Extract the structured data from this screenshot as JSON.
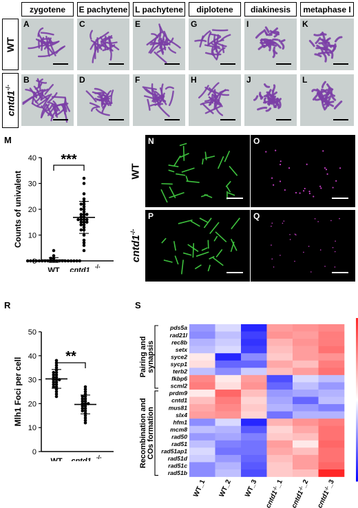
{
  "stages": [
    "zygotene",
    "E pachytene",
    "L pachytene",
    "diplotene",
    "diakinesis",
    "metaphase I"
  ],
  "row_labels": {
    "wt": "WT",
    "mut": "cntd1",
    "mut_sup": "-/-"
  },
  "panel_letters": {
    "top": [
      "A",
      "C",
      "E",
      "G",
      "I",
      "K"
    ],
    "bottom": [
      "B",
      "D",
      "F",
      "H",
      "J",
      "L"
    ]
  },
  "fluor_letters": [
    "N",
    "O",
    "P",
    "Q"
  ],
  "fluor_row_labels": {
    "wt": "WT",
    "mut": "cntd1",
    "mut_sup": "-/-"
  },
  "section_labels": {
    "M": "M",
    "R": "R",
    "S": "S"
  },
  "colors": {
    "chromatin": "#7b3fa6",
    "stage_bg": "#c9d0cf",
    "syn_green": "#3ec23e",
    "foci_magenta": "#c23ec2"
  },
  "chart_data": [
    {
      "type": "scatter",
      "panel": "M",
      "ylabel": "Counts of univalent",
      "ylim": [
        0,
        40
      ],
      "yticks": [
        0,
        10,
        20,
        30,
        40
      ],
      "categories": [
        "WT",
        "cntd1-/-"
      ],
      "significance": "***",
      "series": [
        {
          "values": [
            0,
            0,
            0,
            0,
            0,
            0,
            0,
            0,
            0,
            0,
            0,
            0,
            0,
            0,
            0,
            0,
            0,
            0,
            0,
            1,
            1,
            2,
            4
          ]
        },
        {
          "values": [
            4,
            6,
            7,
            8,
            10,
            12,
            12,
            13,
            14,
            14,
            15,
            15,
            15,
            16,
            16,
            16,
            16,
            17,
            17,
            18,
            18,
            18,
            19,
            20,
            20,
            21,
            22,
            22,
            23,
            24,
            26,
            30,
            32
          ]
        }
      ]
    },
    {
      "type": "scatter",
      "panel": "R",
      "ylabel": "Mlh1 Foci per cell",
      "ylim": [
        0,
        50
      ],
      "yticks": [
        0,
        10,
        20,
        30,
        40,
        50
      ],
      "categories": [
        "WT",
        "cntd1-/-"
      ],
      "significance": "**",
      "series": [
        {
          "values": [
            23,
            24,
            25,
            26,
            27,
            27,
            28,
            28,
            29,
            29,
            30,
            30,
            30,
            31,
            31,
            32,
            32,
            33,
            33,
            34,
            35,
            36,
            37,
            38
          ]
        },
        {
          "values": [
            12,
            13,
            14,
            15,
            16,
            17,
            17,
            18,
            18,
            19,
            19,
            20,
            20,
            20,
            21,
            21,
            22,
            22,
            23,
            23,
            24,
            25,
            26,
            27
          ]
        }
      ]
    },
    {
      "type": "heatmap",
      "panel": "S",
      "columns": [
        "WT_1",
        "WT_2",
        "WT_3",
        "cntd1-/-_1",
        "cntd1-/-_2",
        "cntd1-/-_3"
      ],
      "column_parts": [
        {
          "gene": "",
          "pre": "WT_1",
          "sup": "",
          "post": ""
        },
        {
          "gene": "",
          "pre": "WT_2",
          "sup": "",
          "post": ""
        },
        {
          "gene": "",
          "pre": "WT_3",
          "sup": "",
          "post": ""
        },
        {
          "gene": "cntd1",
          "pre": "",
          "sup": "-/-",
          "post": "_1"
        },
        {
          "gene": "cntd1",
          "pre": "",
          "sup": "-/-",
          "post": "_2"
        },
        {
          "gene": "cntd1",
          "pre": "",
          "sup": "-/-",
          "post": "_3"
        }
      ],
      "groups": [
        {
          "label": "Pairing and synapsis",
          "rows": [
            "pds5a",
            "rad21l",
            "rec8b",
            "setx",
            "syce2",
            "sycp1",
            "terb2",
            "fkbp6",
            "scml2"
          ]
        },
        {
          "label": "Recombination and COs formation",
          "rows": [
            "prdm9",
            "cntd1",
            "mus81",
            "slx4",
            "hfm1",
            "mcm8",
            "rad50",
            "rad51",
            "rad51ap1",
            "rad51d",
            "rad51c",
            "rad51b"
          ]
        }
      ],
      "rows": [
        "pds5a",
        "rad21l",
        "rec8b",
        "setx",
        "syce2",
        "sycp1",
        "terb2",
        "fkbp6",
        "scml2",
        "prdm9",
        "cntd1",
        "mus81",
        "slx4",
        "hfm1",
        "mcm8",
        "rad50",
        "rad51",
        "rad51ap1",
        "rad51d",
        "rad51c",
        "rad51b"
      ],
      "values": [
        [
          -0.8,
          -0.3,
          -1.7,
          0.9,
          1.0,
          1.1
        ],
        [
          -0.9,
          -0.5,
          -1.5,
          1.0,
          0.9,
          1.2
        ],
        [
          -0.6,
          -0.4,
          -1.6,
          0.7,
          1.0,
          1.2
        ],
        [
          -0.5,
          -0.3,
          -1.5,
          0.6,
          0.9,
          1.3
        ],
        [
          0.2,
          -1.7,
          -0.9,
          0.5,
          0.9,
          1.0
        ],
        [
          0.3,
          -1.2,
          -1.2,
          0.8,
          0.6,
          1.2
        ],
        [
          -0.5,
          -0.9,
          -0.4,
          0.6,
          0.9,
          1.3
        ],
        [
          1.1,
          0.2,
          0.9,
          -1.4,
          -0.3,
          -0.5
        ],
        [
          1.2,
          0.3,
          1.0,
          -1.2,
          -0.5,
          -0.8
        ],
        [
          0.2,
          1.4,
          0.6,
          -0.8,
          -0.7,
          -0.6
        ],
        [
          0.6,
          1.2,
          0.4,
          -0.7,
          -1.2,
          -0.5
        ],
        [
          0.8,
          1.1,
          0.5,
          -0.6,
          -0.8,
          -1.0
        ],
        [
          0.9,
          1.0,
          0.4,
          -1.1,
          -0.6,
          -0.6
        ],
        [
          -0.9,
          -0.3,
          -1.7,
          0.7,
          1.0,
          1.2
        ],
        [
          -0.5,
          -0.6,
          -1.3,
          0.4,
          0.8,
          1.3
        ],
        [
          -0.8,
          -0.7,
          -1.0,
          0.5,
          0.6,
          1.3
        ],
        [
          -0.5,
          -1.0,
          -1.1,
          0.9,
          0.2,
          1.4
        ],
        [
          -0.3,
          -1.1,
          -1.1,
          0.8,
          0.6,
          1.3
        ],
        [
          -0.4,
          -0.8,
          -1.2,
          0.6,
          0.9,
          1.3
        ],
        [
          -0.9,
          -0.6,
          -1.3,
          0.5,
          0.9,
          1.4
        ],
        [
          -0.9,
          -0.5,
          -1.4,
          0.5,
          0.6,
          2.0
        ]
      ],
      "scale_ticks": [
        2,
        1,
        0,
        -1,
        -2
      ],
      "zlim": [
        -2,
        2
      ]
    }
  ]
}
